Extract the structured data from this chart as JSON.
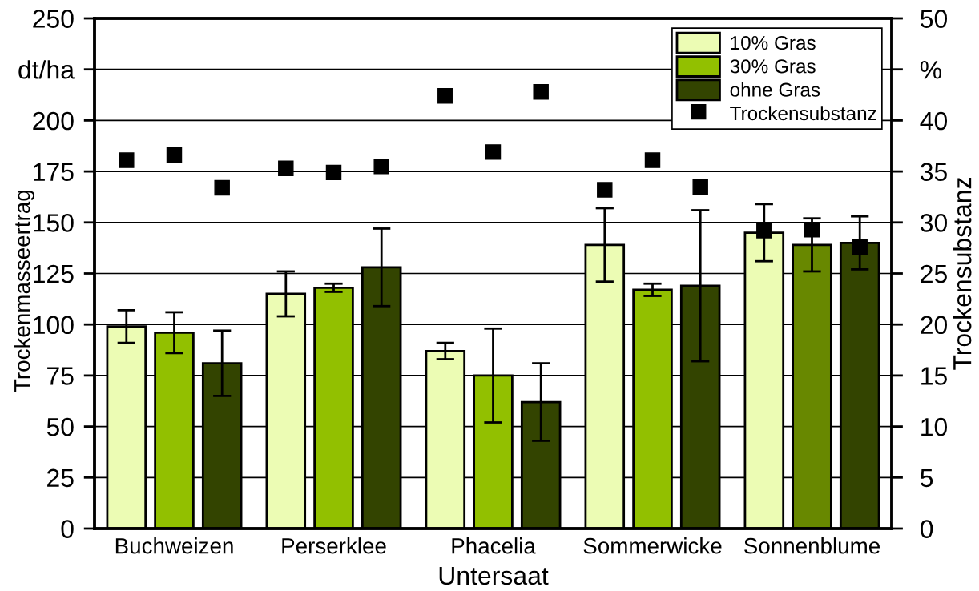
{
  "chart_data": {
    "type": "bar",
    "xlabel": "Untersaat",
    "ylabel": "Trockenmasseertrag",
    "y2label": "Trockensubstanz",
    "categories": [
      "Buchweizen",
      "Perserklee",
      "Phacelia",
      "Sommerwicke",
      "Sonnenblume"
    ],
    "series": [
      {
        "name": "10% Gras",
        "color": "#ecfcb4",
        "values": [
          99,
          115,
          87,
          139,
          145
        ],
        "errors": [
          8,
          11,
          4,
          18,
          14
        ]
      },
      {
        "name": "30% Gras",
        "color": "#92c000",
        "colors": [
          "#92c000",
          "#92c000",
          "#92c000",
          "#92c000",
          "#688800"
        ],
        "values": [
          96,
          118,
          75,
          117,
          139
        ],
        "errors": [
          10,
          2,
          23,
          3,
          13
        ]
      },
      {
        "name": "ohne Gras",
        "color": "#334400",
        "values": [
          81,
          128,
          62,
          119,
          140
        ],
        "errors": [
          16,
          19,
          19,
          37,
          13
        ]
      },
      {
        "type": "scatter",
        "name": "Trockensubstanz",
        "color": "#000000",
        "axis": "y2",
        "x": [
          "Buchweizen",
          "Perserklee",
          "Phacelia",
          "Sommerwicke",
          "Sonnenblume"
        ],
        "values": [
          36.1,
          35.3,
          42.4,
          33.2,
          29.2
        ]
      },
      {
        "type": "scatter",
        "color": "#000000",
        "axis": "y2",
        "x": [
          "Buchweizen",
          "Perserklee",
          "Phacelia",
          "Sommerwicke",
          "Sonnenblume"
        ],
        "values": [
          36.6,
          34.9,
          36.9,
          36.1,
          29.3
        ]
      },
      {
        "type": "scatter",
        "color": "#000000",
        "axis": "y2",
        "x": [
          "Buchweizen",
          "Perserklee",
          "Phacelia",
          "Sommerwicke",
          "Sonnenblume"
        ],
        "values": [
          33.4,
          35.5,
          42.8,
          33.5,
          27.6
        ]
      }
    ],
    "ylim": [
      0,
      250
    ],
    "yticks": [
      0,
      25,
      50,
      75,
      100,
      125,
      150,
      175,
      200,
      {
        "value": 225,
        "label": "dt/ha"
      },
      250
    ],
    "y2lim": [
      0,
      50
    ],
    "y2ticks": [
      0,
      5,
      10,
      15,
      20,
      25,
      30,
      35,
      40,
      {
        "value": 45,
        "label": "%"
      },
      50
    ],
    "grid": "y",
    "legend": "top right",
    "marker": "square"
  }
}
